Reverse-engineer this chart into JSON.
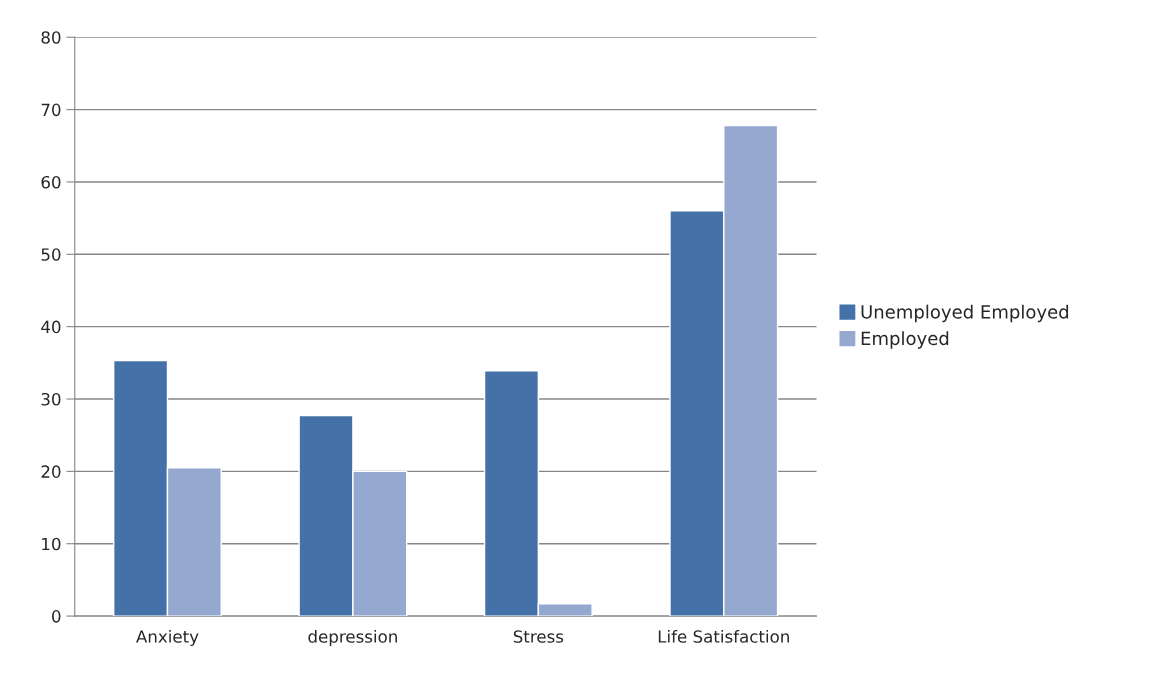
{
  "chart_data": {
    "type": "bar",
    "categories": [
      "Anxiety",
      "depression",
      "Stress",
      "Life Satisfaction"
    ],
    "series": [
      {
        "name": "Unemployed Employed",
        "color": "#4472a8",
        "values": [
          35.3,
          27.7,
          33.9,
          56
        ]
      },
      {
        "name": "Employed",
        "color": "#95a9d0",
        "values": [
          20.5,
          20,
          1.7,
          67.8
        ]
      }
    ],
    "ylim": [
      0,
      80
    ],
    "yticks": [
      0,
      10,
      20,
      30,
      40,
      50,
      60,
      70,
      80
    ],
    "grid": "y",
    "legend": "right"
  }
}
